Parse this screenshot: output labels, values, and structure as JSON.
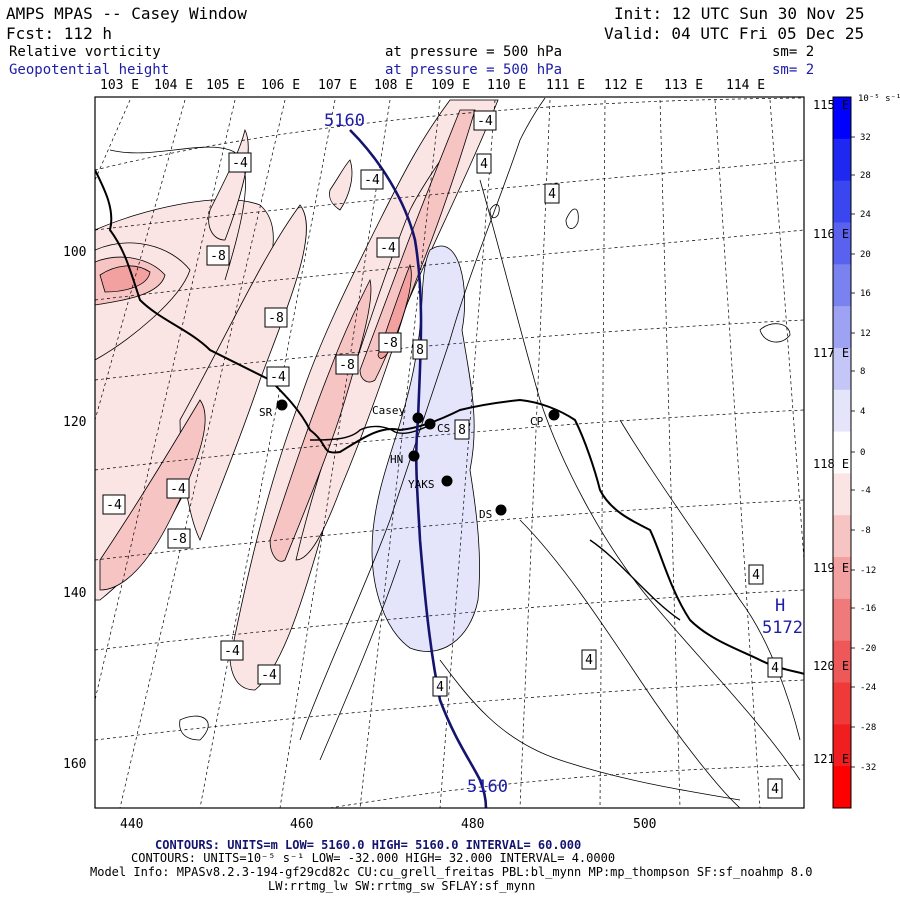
{
  "header": {
    "title": "AMPS MPAS -- Casey Window",
    "fcst": "Fcst:  112 h",
    "init": "Init: 12 UTC Sun 30 Nov 25",
    "valid": "Valid: 04 UTC Fri 05 Dec 25",
    "field1": {
      "name": "Relative vorticity",
      "level": "at pressure =  500 hPa",
      "sm": "sm= 2"
    },
    "field2": {
      "name": "Geopotential height",
      "level": "at pressure =  500 hPa",
      "sm": "sm= 2"
    }
  },
  "map": {
    "lon_labels_top": [
      "103 E",
      "104 E",
      "105 E",
      "106 E",
      "107 E",
      "108 E",
      "109 E",
      "110 E",
      "111 E",
      "112 E",
      "113 E",
      "114 E"
    ],
    "lon_labels_right": [
      "115 E",
      "116 E",
      "117 E",
      "118 E",
      "119 E",
      "120 E",
      "121 E"
    ],
    "y_ticks": [
      "100",
      "120",
      "140",
      "160"
    ],
    "x_ticks": [
      "440",
      "460",
      "480",
      "500"
    ],
    "stations": [
      {
        "name": "SR"
      },
      {
        "name": "Casey"
      },
      {
        "name": "CS"
      },
      {
        "name": "HN"
      },
      {
        "name": "YAKS"
      },
      {
        "name": "DS"
      },
      {
        "name": "CP"
      }
    ],
    "height_labels": [
      "5160",
      "5160"
    ],
    "high_label": {
      "letter": "H",
      "value": "5172"
    },
    "vort_labels": [
      "-4",
      "-4",
      "4",
      "-4",
      "4",
      "-4",
      "-8",
      "-8",
      "-8",
      "-8",
      "8",
      "-4",
      "8",
      "-4",
      "-4",
      "-8",
      "-4",
      "-4",
      "4",
      "4",
      "4",
      "4",
      "4"
    ]
  },
  "colorbar": {
    "units": "10⁻⁵ s⁻¹",
    "levels": [
      "32",
      "28",
      "24",
      "20",
      "16",
      "12",
      "8",
      "4",
      "0",
      "-4",
      "-8",
      "-12",
      "-16",
      "-20",
      "-24",
      "-28",
      "-32"
    ],
    "colors": {
      "pos": [
        "#0000ff",
        "#1e28f0",
        "#3a46f0",
        "#5862ee",
        "#7a82f0",
        "#9ea2f3",
        "#c4c6f7",
        "#e4e5fb",
        "#ffffff"
      ],
      "neg": [
        "#ffffff",
        "#fbe4e4",
        "#f7c4c4",
        "#f3a0a0",
        "#f07a7a",
        "#ee5858",
        "#f03a3a",
        "#f01e1e",
        "#ff0000"
      ]
    }
  },
  "footer": {
    "line1": "CONTOURS:  UNITS=m  LOW=  5160.0       HIGH=  5160.0       INTERVAL=   60.000",
    "line2": "CONTOURS:  UNITS=10⁻⁵ s⁻¹  LOW= -32.000       HIGH=  32.000       INTERVAL=   4.0000",
    "line3": "Model Info: MPASv8.2.3-194-gf29cd82c CU:cu_grell_freitas PBL:bl_mynn MP:mp_thompson SF:sf_noahmp 8.0",
    "line4": "LW:rrtmg_lw SW:rrtmg_sw SFLAY:sf_mynn"
  }
}
